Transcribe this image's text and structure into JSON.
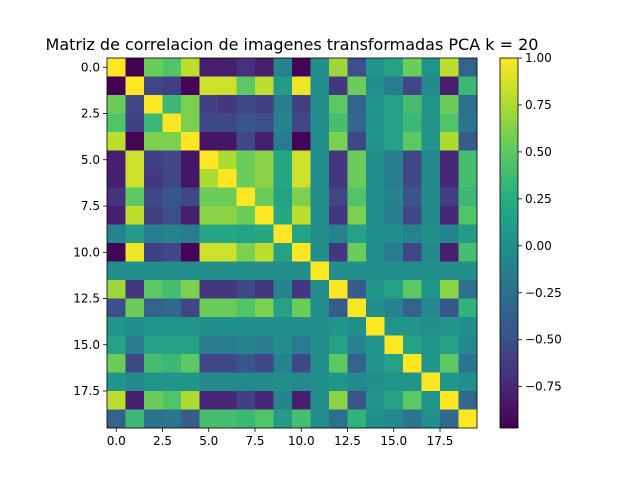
{
  "chart_data": {
    "type": "heatmap",
    "title": "Matriz de correlacion de imagenes transformadas PCA k = 20",
    "xlabel": "",
    "ylabel": "",
    "rows": 20,
    "cols": 20,
    "x_ticks": [
      "0.0",
      "2.5",
      "5.0",
      "7.5",
      "10.0",
      "12.5",
      "15.0",
      "17.5"
    ],
    "x_tick_values": [
      0,
      2.5,
      5,
      7.5,
      10,
      12.5,
      15,
      17.5
    ],
    "y_ticks": [
      "0.0",
      "2.5",
      "5.0",
      "7.5",
      "10.0",
      "12.5",
      "15.0",
      "17.5"
    ],
    "y_tick_values": [
      0,
      2.5,
      5,
      7.5,
      10,
      12.5,
      15,
      17.5
    ],
    "colormap": "viridis",
    "vmin": -0.97,
    "vmax": 1.0,
    "colorbar_ticks": [
      "1.00",
      "0.75",
      "0.50",
      "0.25",
      "0.00",
      "−0.25",
      "−0.50",
      "−0.75"
    ],
    "colorbar_tick_values": [
      1.0,
      0.75,
      0.5,
      0.25,
      0.0,
      -0.25,
      -0.5,
      -0.75
    ],
    "grid": false,
    "matrix": [
      [
        1.0,
        -0.97,
        0.55,
        0.45,
        0.8,
        -0.8,
        -0.8,
        -0.7,
        -0.8,
        -0.1,
        -0.95,
        0.0,
        0.7,
        -0.5,
        0.05,
        0.15,
        0.55,
        0.05,
        0.8,
        -0.35
      ],
      [
        -0.97,
        1.0,
        -0.55,
        -0.6,
        -0.95,
        0.85,
        0.85,
        0.5,
        0.8,
        0.1,
        0.95,
        0.0,
        -0.65,
        0.55,
        0.0,
        -0.15,
        -0.55,
        -0.05,
        -0.8,
        0.35
      ],
      [
        0.55,
        -0.55,
        1.0,
        0.35,
        0.6,
        -0.6,
        -0.65,
        -0.55,
        -0.6,
        -0.15,
        -0.6,
        0.0,
        0.5,
        -0.35,
        0.05,
        0.15,
        0.4,
        0.05,
        0.55,
        -0.25
      ],
      [
        0.45,
        -0.6,
        0.35,
        1.0,
        0.6,
        -0.55,
        -0.55,
        -0.45,
        -0.5,
        -0.1,
        -0.55,
        0.0,
        0.4,
        -0.3,
        0.05,
        0.15,
        0.35,
        0.05,
        0.45,
        -0.2
      ],
      [
        0.8,
        -0.95,
        0.6,
        0.6,
        1.0,
        -0.85,
        -0.85,
        -0.55,
        -0.8,
        -0.15,
        -0.95,
        0.0,
        0.6,
        -0.55,
        0.05,
        0.15,
        0.5,
        0.05,
        0.75,
        -0.4
      ],
      [
        -0.8,
        0.85,
        -0.6,
        -0.55,
        -0.85,
        1.0,
        0.75,
        0.55,
        0.65,
        0.2,
        0.85,
        0.0,
        -0.65,
        0.55,
        0.0,
        -0.15,
        -0.55,
        -0.05,
        -0.75,
        0.4
      ],
      [
        -0.8,
        0.85,
        -0.65,
        -0.55,
        -0.85,
        0.75,
        1.0,
        0.55,
        0.65,
        0.2,
        0.85,
        0.0,
        -0.65,
        0.55,
        0.0,
        -0.15,
        -0.55,
        -0.05,
        -0.75,
        0.4
      ],
      [
        -0.7,
        0.5,
        -0.55,
        -0.45,
        -0.55,
        0.55,
        0.55,
        1.0,
        0.55,
        0.15,
        0.6,
        0.0,
        -0.55,
        0.45,
        0.0,
        -0.1,
        -0.45,
        -0.05,
        -0.6,
        0.35
      ],
      [
        -0.8,
        0.8,
        -0.6,
        -0.5,
        -0.8,
        0.65,
        0.65,
        0.55,
        1.0,
        0.2,
        0.8,
        0.0,
        -0.65,
        0.6,
        0.0,
        -0.15,
        -0.55,
        -0.05,
        -0.75,
        0.45
      ],
      [
        -0.1,
        0.1,
        -0.15,
        -0.1,
        -0.15,
        0.2,
        0.2,
        0.15,
        0.2,
        1.0,
        0.15,
        0.0,
        -0.1,
        0.15,
        0.0,
        0.0,
        -0.1,
        0.0,
        -0.1,
        0.1
      ],
      [
        -0.95,
        0.95,
        -0.6,
        -0.55,
        -0.95,
        0.85,
        0.85,
        0.6,
        0.8,
        0.15,
        1.0,
        0.0,
        -0.65,
        0.55,
        0.0,
        -0.15,
        -0.55,
        -0.05,
        -0.8,
        0.4
      ],
      [
        0.0,
        0.0,
        0.0,
        0.0,
        0.0,
        0.0,
        0.0,
        0.0,
        0.0,
        0.0,
        0.0,
        1.0,
        0.0,
        0.0,
        0.0,
        0.0,
        0.0,
        0.0,
        0.0,
        0.0
      ],
      [
        0.7,
        -0.65,
        0.5,
        0.4,
        0.6,
        -0.65,
        -0.65,
        -0.55,
        -0.65,
        -0.1,
        -0.65,
        0.0,
        1.0,
        -0.4,
        0.05,
        0.15,
        0.5,
        0.05,
        0.65,
        -0.25
      ],
      [
        -0.5,
        0.55,
        -0.35,
        -0.3,
        -0.55,
        0.55,
        0.55,
        0.45,
        0.6,
        0.15,
        0.55,
        0.0,
        -0.4,
        1.0,
        0.0,
        -0.1,
        -0.35,
        -0.05,
        -0.45,
        0.3
      ],
      [
        0.05,
        0.0,
        0.05,
        0.05,
        0.05,
        0.0,
        0.0,
        0.0,
        0.0,
        0.0,
        0.0,
        0.0,
        0.05,
        0.0,
        1.0,
        0.05,
        0.05,
        0.0,
        0.05,
        0.0
      ],
      [
        0.15,
        -0.15,
        0.15,
        0.15,
        0.15,
        -0.15,
        -0.15,
        -0.1,
        -0.15,
        0.0,
        -0.15,
        0.0,
        0.15,
        -0.1,
        0.05,
        1.0,
        0.15,
        0.05,
        0.15,
        -0.05
      ],
      [
        0.55,
        -0.55,
        0.4,
        0.35,
        0.5,
        -0.55,
        -0.55,
        -0.45,
        -0.55,
        -0.1,
        -0.55,
        0.0,
        0.5,
        -0.35,
        0.05,
        0.15,
        1.0,
        0.05,
        0.5,
        -0.2
      ],
      [
        0.05,
        -0.05,
        0.05,
        0.05,
        0.05,
        -0.05,
        -0.05,
        -0.05,
        -0.05,
        0.0,
        -0.05,
        0.0,
        0.05,
        -0.05,
        0.0,
        0.05,
        0.05,
        1.0,
        0.05,
        0.0
      ],
      [
        0.8,
        -0.8,
        0.55,
        0.45,
        0.75,
        -0.75,
        -0.75,
        -0.6,
        -0.75,
        -0.1,
        -0.8,
        0.0,
        0.65,
        -0.45,
        0.05,
        0.15,
        0.5,
        0.05,
        1.0,
        -0.3
      ],
      [
        -0.35,
        0.35,
        -0.25,
        -0.2,
        -0.4,
        0.4,
        0.4,
        0.35,
        0.45,
        0.1,
        0.4,
        0.0,
        -0.25,
        0.3,
        0.0,
        -0.05,
        -0.2,
        0.0,
        -0.3,
        1.0
      ]
    ]
  }
}
